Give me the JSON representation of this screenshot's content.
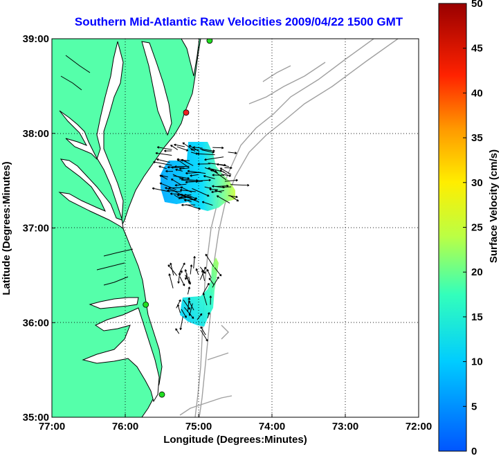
{
  "title": "Southern Mid-Atlantic Raw Velocities 2009/04/22 1500 GMT",
  "x_axis": {
    "label": "Longitude (Degrees:Minutes)",
    "ticks": [
      "77:00",
      "76:00",
      "75:00",
      "74:00",
      "73:00",
      "72:00"
    ]
  },
  "y_axis": {
    "label": "Latitude (Degrees:Minutes)",
    "ticks": [
      "39:00",
      "38:00",
      "37:00",
      "36:00",
      "35:00"
    ]
  },
  "colorbar": {
    "label": "Surface Velocity (cm/s)",
    "ticks": [
      "50",
      "45",
      "40",
      "35",
      "30",
      "25",
      "20",
      "15",
      "10",
      "5",
      "0"
    ],
    "colors": [
      "#0055ff",
      "#00ccff",
      "#55ffcc",
      "#ccff33",
      "#ffdd00",
      "#ff8800",
      "#ff2200",
      "#aa0000"
    ]
  },
  "map": {
    "extent": {
      "lon_min": -77,
      "lon_max": -72,
      "lat_min": 35,
      "lat_max": 39
    },
    "land_color": "#55ffaa",
    "contour_color": "#a0a0a0",
    "grid": "dotted",
    "sites": [
      {
        "name": "green-site",
        "color": "#22dd22",
        "lon": -74.85,
        "lat": 38.98
      },
      {
        "name": "red-site",
        "color": "#ee2222",
        "lon": -75.17,
        "lat": 38.22
      },
      {
        "name": "green-site",
        "color": "#22dd22",
        "lon": -75.72,
        "lat": 36.19
      },
      {
        "name": "green-site",
        "color": "#22dd22",
        "lon": -75.5,
        "lat": 35.24
      }
    ]
  }
}
